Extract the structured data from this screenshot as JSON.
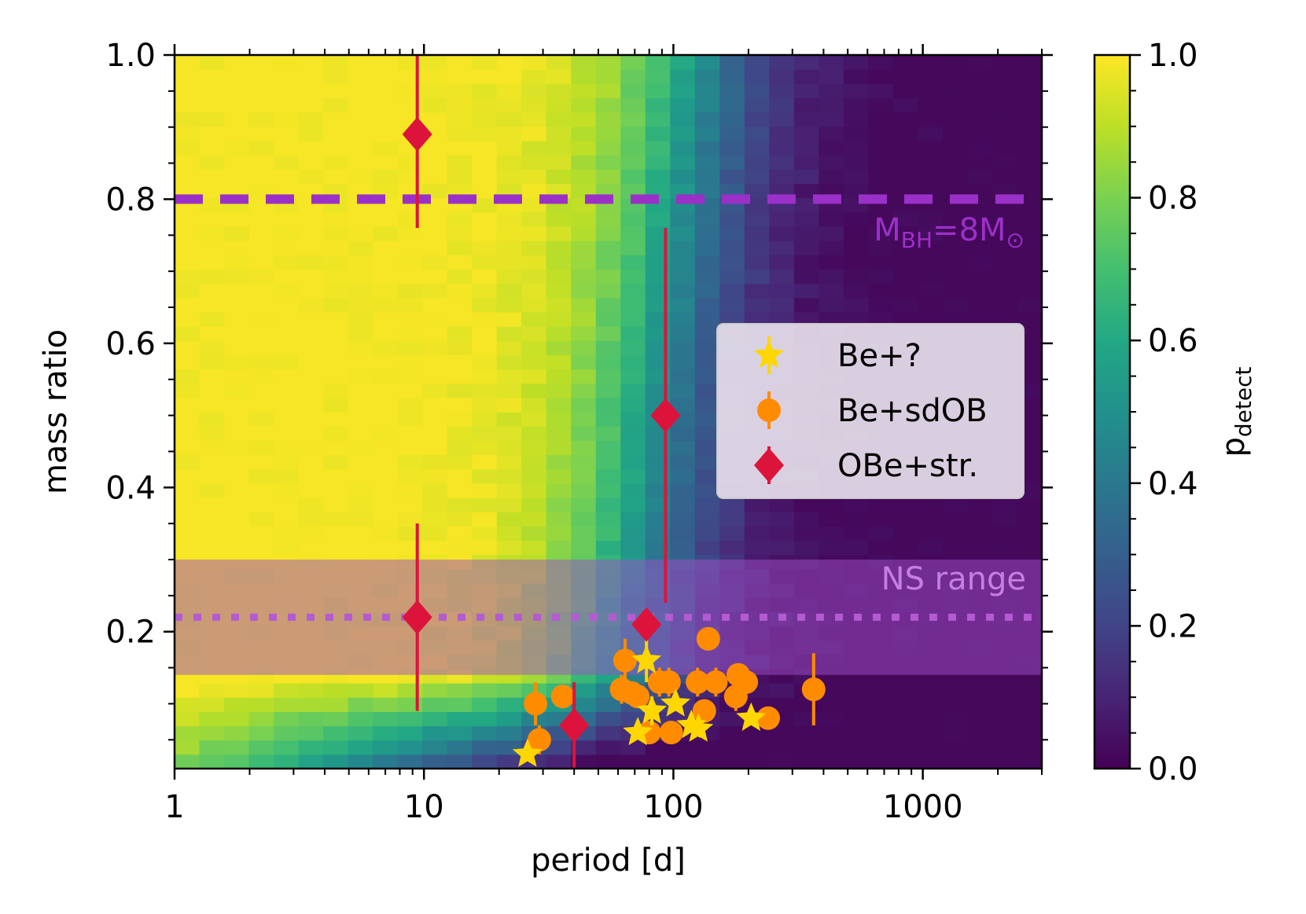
{
  "chart_data": {
    "type": "heatmap",
    "xlabel": "period [d]",
    "ylabel": "mass ratio",
    "xscale": "log",
    "xlim": [
      1,
      3000
    ],
    "ylim": [
      0.01,
      1.0
    ],
    "xticks": [
      {
        "value": 1,
        "label": "1"
      },
      {
        "value": 10,
        "label": "10"
      },
      {
        "value": 100,
        "label": "100"
      },
      {
        "value": 1000,
        "label": "1000"
      }
    ],
    "yticks": [
      {
        "value": 0.2,
        "label": "0.2"
      },
      {
        "value": 0.4,
        "label": "0.4"
      },
      {
        "value": 0.6,
        "label": "0.6"
      },
      {
        "value": 0.8,
        "label": "0.8"
      },
      {
        "value": 1.0,
        "label": "1.0"
      }
    ],
    "colorbar": {
      "label_main": "p",
      "label_sub": "detect",
      "range": [
        0,
        1
      ],
      "ticks": [
        {
          "value": 0.0,
          "label": "0.0"
        },
        {
          "value": 0.2,
          "label": "0.2"
        },
        {
          "value": 0.4,
          "label": "0.4"
        },
        {
          "value": 0.6,
          "label": "0.6"
        },
        {
          "value": 0.8,
          "label": "0.8"
        },
        {
          "value": 1.0,
          "label": "1.0"
        }
      ]
    },
    "heatmap": {
      "description": "detection probability vs period and mass ratio",
      "n_period_bins": 35,
      "n_mass_bins": 50,
      "log_period_turnover": 1.93,
      "turnover_width": 0.2
    },
    "reference_lines": [
      {
        "name": "bh-line",
        "y": 0.8,
        "style": "dashed",
        "color": "#9b30c8",
        "label_main": "M",
        "label_sub1": "BH",
        "label_mid": "=8M",
        "label_sub2": "⊙"
      },
      {
        "name": "ns-line",
        "y": 0.22,
        "style": "dotted",
        "color": "#b45ad2"
      }
    ],
    "bands": [
      {
        "name": "ns-range",
        "y0": 0.14,
        "y1": 0.3,
        "color": "#a050c8",
        "label": "NS range"
      }
    ],
    "series": [
      {
        "name": "Be+?",
        "marker": "star",
        "color": "#ffd700",
        "points": [
          {
            "x": 26,
            "y": 0.03,
            "yerr": 0.0
          },
          {
            "x": 72,
            "y": 0.06,
            "yerr": 0.0
          },
          {
            "x": 78,
            "y": 0.16,
            "yerr": 0.03
          },
          {
            "x": 82,
            "y": 0.09,
            "yerr": 0.02
          },
          {
            "x": 102,
            "y": 0.1,
            "yerr": 0.0
          },
          {
            "x": 118,
            "y": 0.07,
            "yerr": 0.0
          },
          {
            "x": 126,
            "y": 0.065,
            "yerr": 0.0
          },
          {
            "x": 205,
            "y": 0.08,
            "yerr": 0.0
          }
        ]
      },
      {
        "name": "Be+sdOB",
        "marker": "circle",
        "color": "#ff8c00",
        "points": [
          {
            "x": 28,
            "y": 0.1,
            "yerr": 0.03
          },
          {
            "x": 29,
            "y": 0.05,
            "yerr": 0.02
          },
          {
            "x": 36,
            "y": 0.11,
            "yerr": 0.0
          },
          {
            "x": 62,
            "y": 0.12,
            "yerr": 0.02
          },
          {
            "x": 64,
            "y": 0.16,
            "yerr": 0.03
          },
          {
            "x": 68,
            "y": 0.115,
            "yerr": 0.0
          },
          {
            "x": 72,
            "y": 0.11,
            "yerr": 0.0
          },
          {
            "x": 80,
            "y": 0.06,
            "yerr": 0.0
          },
          {
            "x": 88,
            "y": 0.13,
            "yerr": 0.02
          },
          {
            "x": 96,
            "y": 0.13,
            "yerr": 0.02
          },
          {
            "x": 98,
            "y": 0.06,
            "yerr": 0.0
          },
          {
            "x": 125,
            "y": 0.13,
            "yerr": 0.02
          },
          {
            "x": 133,
            "y": 0.09,
            "yerr": 0.0
          },
          {
            "x": 138,
            "y": 0.19,
            "yerr": 0.0
          },
          {
            "x": 148,
            "y": 0.13,
            "yerr": 0.02
          },
          {
            "x": 178,
            "y": 0.11,
            "yerr": 0.02
          },
          {
            "x": 182,
            "y": 0.14,
            "yerr": 0.0
          },
          {
            "x": 196,
            "y": 0.13,
            "yerr": 0.0
          },
          {
            "x": 240,
            "y": 0.08,
            "yerr": 0.0
          },
          {
            "x": 365,
            "y": 0.12,
            "yerr": 0.05
          }
        ]
      },
      {
        "name": "OBe+str.",
        "marker": "diamond",
        "color": "#dc143c",
        "points": [
          {
            "x": 9.4,
            "y": 0.89,
            "yerr": 0.13
          },
          {
            "x": 9.4,
            "y": 0.22,
            "yerr": 0.13
          },
          {
            "x": 40,
            "y": 0.07,
            "yerr": 0.06
          },
          {
            "x": 78,
            "y": 0.21,
            "yerr": 0.0
          },
          {
            "x": 93,
            "y": 0.5,
            "yerr": 0.26
          }
        ]
      }
    ],
    "legend": {
      "position": "center-right",
      "entries": [
        "Be+?",
        "Be+sdOB",
        "OBe+str."
      ]
    }
  }
}
